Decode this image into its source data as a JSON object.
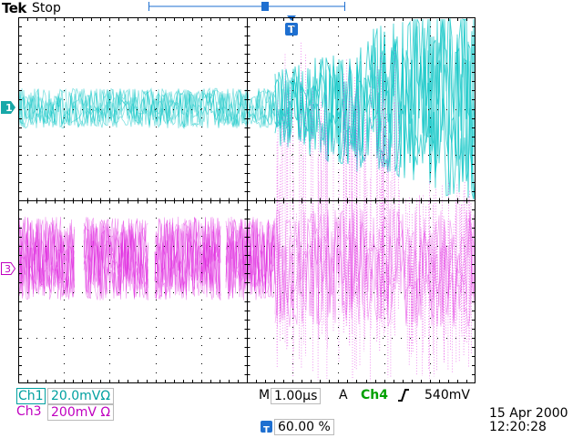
{
  "header": {
    "brand": "Tek",
    "status": "Stop",
    "record_indicator_icon": "trigger-position-record-bar"
  },
  "markers": {
    "ch1": "1",
    "ch3": "3",
    "trigger_icon": "T"
  },
  "colors": {
    "ch1": "#18c8c8",
    "ch3": "#e020e0",
    "trigger_source": "#00a000",
    "trigger_marker": "#1e6fd0",
    "grid": "#000000"
  },
  "readout": {
    "ch1_label": "Ch1",
    "ch1_scale": "20.0mVΩ",
    "ch3_label": "Ch3",
    "ch3_scale": "200mV Ω",
    "timebase_label": "M",
    "timebase": "1.00µs",
    "trigger_mode": "A",
    "trigger_source": "Ch4",
    "trigger_slope_icon": "rising-edge-icon",
    "trigger_level": "540mV",
    "trigger_position": "60.00 %"
  },
  "datetime": {
    "date": "15 Apr  2000",
    "time": "12:20:28"
  }
}
